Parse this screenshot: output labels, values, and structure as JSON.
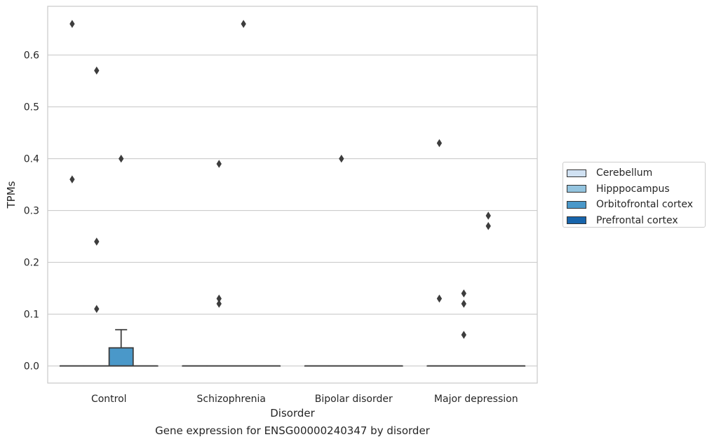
{
  "chart_data": {
    "type": "box",
    "caption": "Gene expression for ENSG00000240347 by disorder",
    "xlabel": "Disorder",
    "ylabel": "TPMs",
    "ylim": [
      -0.033,
      0.694
    ],
    "yticks": [
      0.0,
      0.1,
      0.2,
      0.3,
      0.4,
      0.5,
      0.6
    ],
    "ytick_labels": [
      "0.0",
      "0.1",
      "0.2",
      "0.3",
      "0.4",
      "0.5",
      "0.6"
    ],
    "categories": [
      "Control",
      "Schizophrenia",
      "Bipolar disorder",
      "Major depression"
    ],
    "grid": true,
    "legend_position": "right",
    "series": [
      {
        "name": "Cerebellum",
        "color": "#d0e1f2",
        "boxes": [
          {
            "q1": 0,
            "median": 0,
            "q3": 0,
            "whisker_low": 0,
            "whisker_high": 0,
            "outliers": [
              0.66,
              0.36
            ]
          },
          {
            "q1": 0,
            "median": 0,
            "q3": 0,
            "whisker_low": 0,
            "whisker_high": 0,
            "outliers": []
          },
          {
            "q1": 0,
            "median": 0,
            "q3": 0,
            "whisker_low": 0,
            "whisker_high": 0,
            "outliers": []
          },
          {
            "q1": 0,
            "median": 0,
            "q3": 0,
            "whisker_low": 0,
            "whisker_high": 0,
            "outliers": [
              0.43,
              0.13
            ]
          }
        ]
      },
      {
        "name": "Hipppocampus",
        "color": "#94c4df",
        "boxes": [
          {
            "q1": 0,
            "median": 0,
            "q3": 0,
            "whisker_low": 0,
            "whisker_high": 0,
            "outliers": [
              0.57,
              0.24,
              0.11
            ]
          },
          {
            "q1": 0,
            "median": 0,
            "q3": 0,
            "whisker_low": 0,
            "whisker_high": 0,
            "outliers": [
              0.39,
              0.13,
              0.12
            ]
          },
          {
            "q1": 0,
            "median": 0,
            "q3": 0,
            "whisker_low": 0,
            "whisker_high": 0,
            "outliers": [
              0.4
            ]
          },
          {
            "q1": 0,
            "median": 0,
            "q3": 0,
            "whisker_low": 0,
            "whisker_high": 0,
            "outliers": [
              0.14,
              0.12,
              0.06
            ]
          }
        ]
      },
      {
        "name": "Orbitofrontal cortex",
        "color": "#4a98c9",
        "boxes": [
          {
            "q1": 0,
            "median": 0,
            "q3": 0.035,
            "whisker_low": 0,
            "whisker_high": 0.07,
            "outliers": [
              0.4
            ]
          },
          {
            "q1": 0,
            "median": 0,
            "q3": 0,
            "whisker_low": 0,
            "whisker_high": 0,
            "outliers": [
              0.66
            ]
          },
          {
            "q1": 0,
            "median": 0,
            "q3": 0,
            "whisker_low": 0,
            "whisker_high": 0,
            "outliers": []
          },
          {
            "q1": 0,
            "median": 0,
            "q3": 0,
            "whisker_low": 0,
            "whisker_high": 0,
            "outliers": [
              0.29,
              0.27
            ]
          }
        ]
      },
      {
        "name": "Prefrontal cortex",
        "color": "#1764ab",
        "boxes": [
          {
            "q1": 0,
            "median": 0,
            "q3": 0,
            "whisker_low": 0,
            "whisker_high": 0,
            "outliers": []
          },
          {
            "q1": 0,
            "median": 0,
            "q3": 0,
            "whisker_low": 0,
            "whisker_high": 0,
            "outliers": []
          },
          {
            "q1": 0,
            "median": 0,
            "q3": 0,
            "whisker_low": 0,
            "whisker_high": 0,
            "outliers": []
          },
          {
            "q1": 0,
            "median": 0,
            "q3": 0,
            "whisker_low": 0,
            "whisker_high": 0,
            "outliers": []
          }
        ]
      }
    ]
  }
}
